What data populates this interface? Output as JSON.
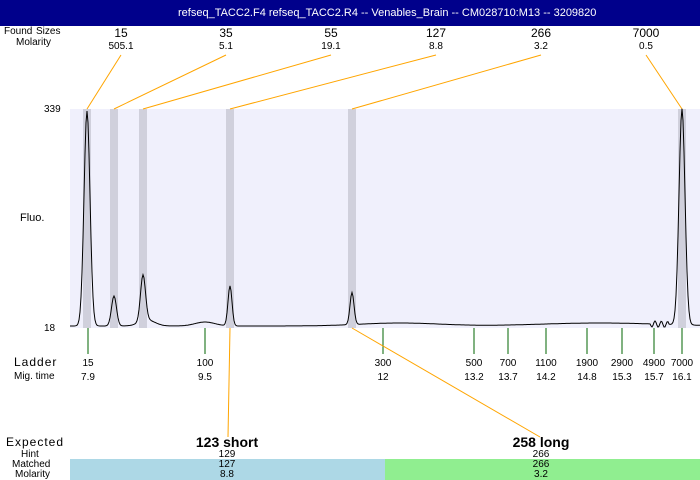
{
  "title": "refseq_TACC2.F4  refseq_TACC2.R4 -- Venables_Brain -- CM028710:M13 -- 3209820",
  "labels": {
    "found": "Found",
    "sizes": "Sizes",
    "molarity": "Molarity",
    "fluo": "Fluo.",
    "ladder": "Ladder",
    "mig_time": "Mig. time",
    "expected": "Expected",
    "hint": "Hint",
    "matched": "Matched",
    "molarity2": "Molarity"
  },
  "colors": {
    "titlebar": "#00008b",
    "plot_bg": "#f0f0fc",
    "band": "#d0d0dc",
    "connector": "#ffa500",
    "ladder_tick": "#006400",
    "short_bar": "#add8e6",
    "long_bar": "#90ee90"
  },
  "chart_data": {
    "type": "line",
    "ylabel": "Fluo.",
    "ylim": [
      18,
      339
    ],
    "yticks": [
      "339",
      "18"
    ],
    "found_peaks": [
      {
        "size": "15",
        "molarity": "505.1"
      },
      {
        "size": "35",
        "molarity": "5.1"
      },
      {
        "size": "55",
        "molarity": "19.1"
      },
      {
        "size": "127",
        "molarity": "8.8"
      },
      {
        "size": "266",
        "molarity": "3.2"
      },
      {
        "size": "7000",
        "molarity": "0.5"
      }
    ],
    "ladder": [
      {
        "size": "15",
        "mig": "7.9"
      },
      {
        "size": "100",
        "mig": "9.5"
      },
      {
        "size": "300",
        "mig": "12"
      },
      {
        "size": "500",
        "mig": "13.2"
      },
      {
        "size": "700",
        "mig": "13.7"
      },
      {
        "size": "1100",
        "mig": "14.2"
      },
      {
        "size": "1900",
        "mig": "14.8"
      },
      {
        "size": "2900",
        "mig": "15.3"
      },
      {
        "size": "4900",
        "mig": "15.7"
      },
      {
        "size": "7000",
        "mig": "16.1"
      }
    ],
    "expected": [
      {
        "label": "123 short",
        "hint": "129",
        "matched": "127",
        "molarity": "8.8"
      },
      {
        "label": "258 long",
        "hint": "266",
        "matched": "266",
        "molarity": "3.2"
      }
    ]
  }
}
